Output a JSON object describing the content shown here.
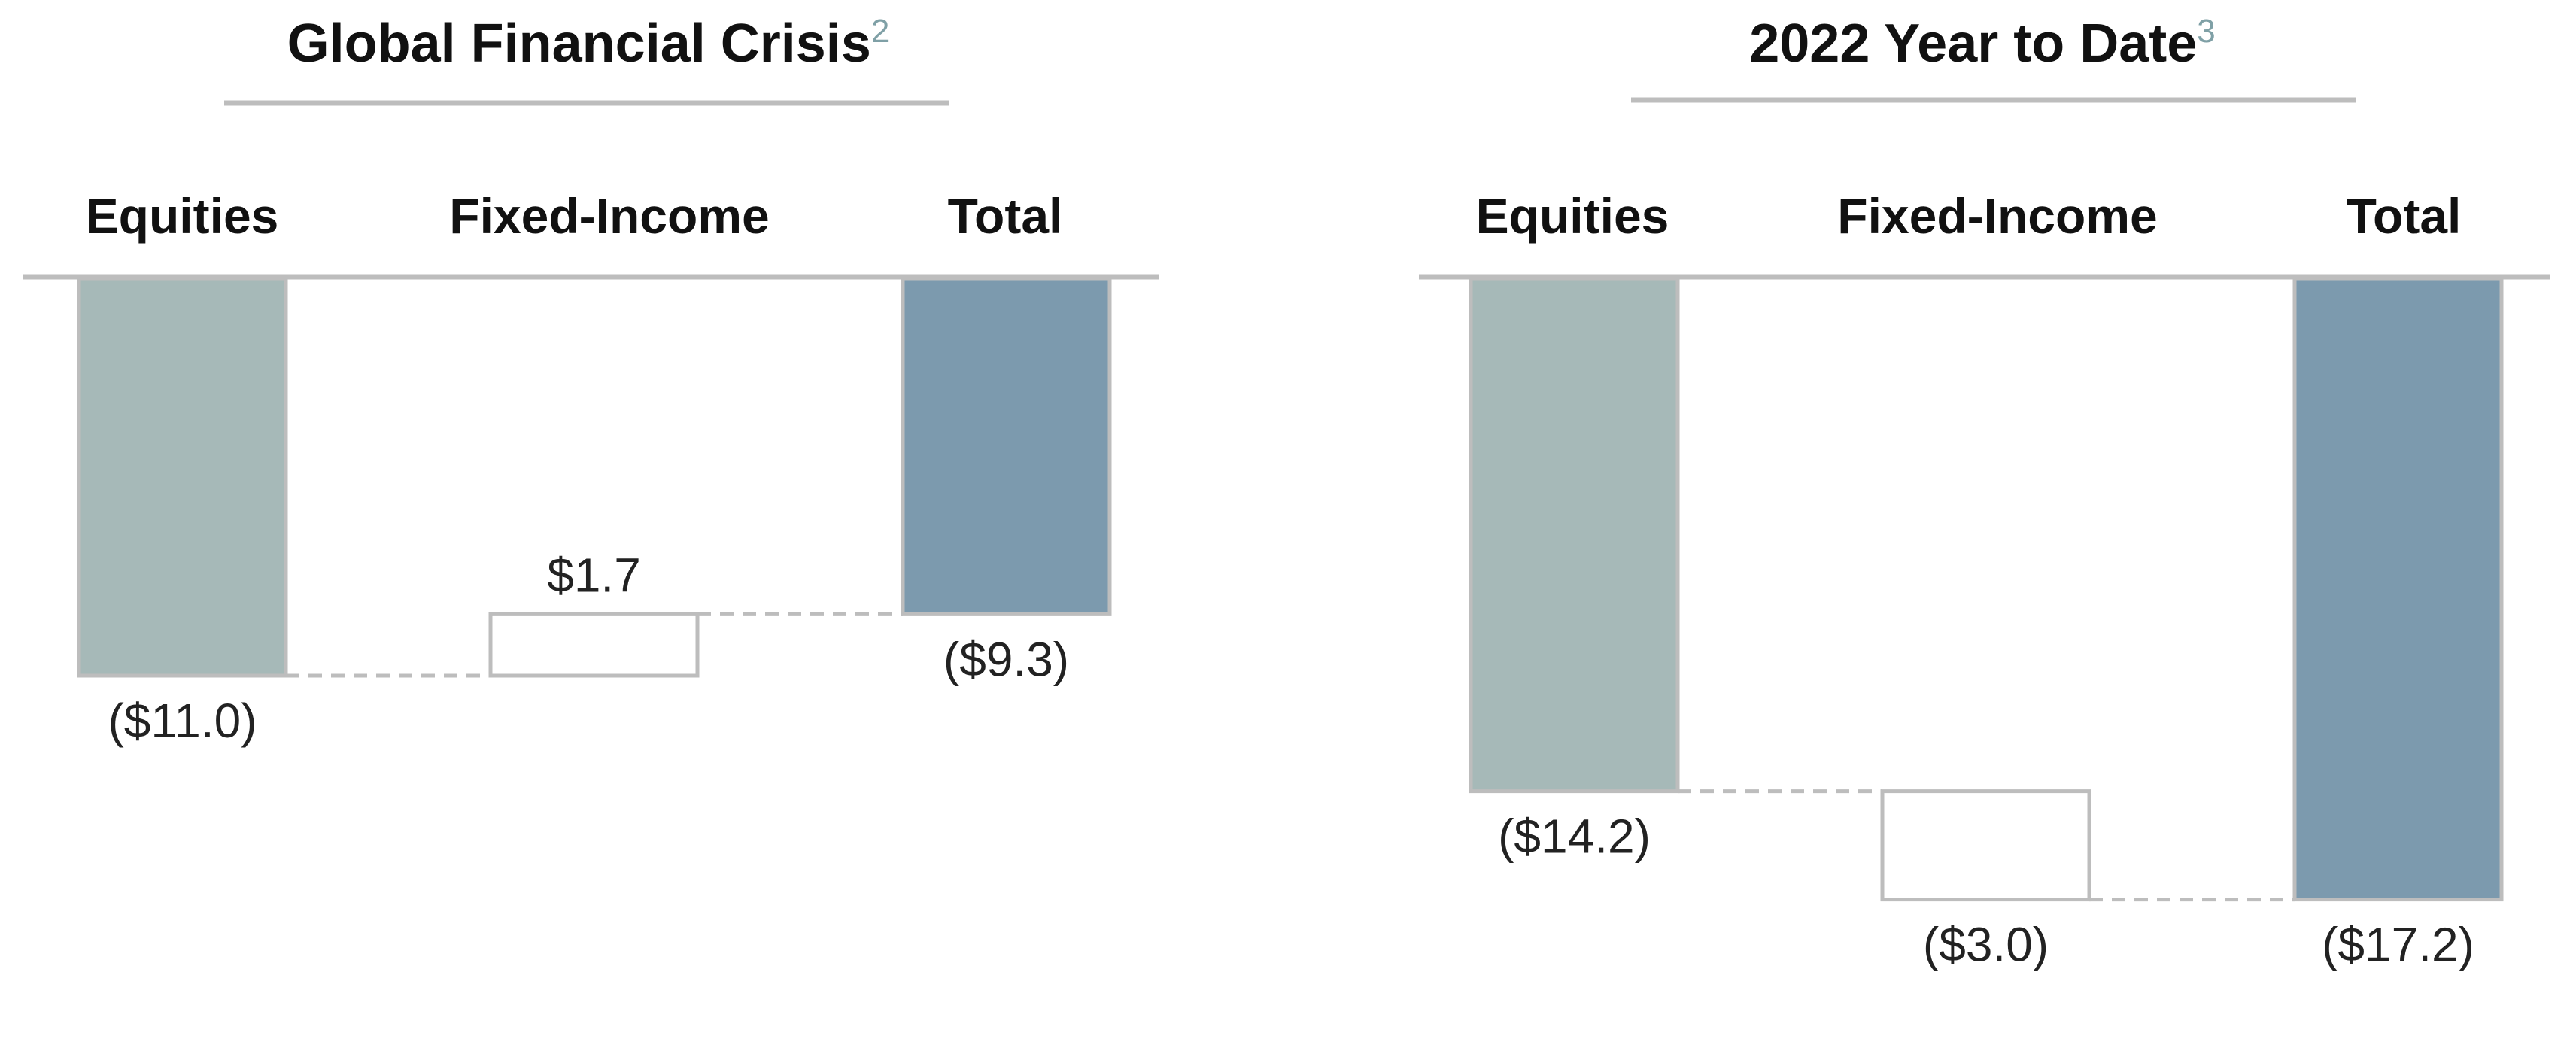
{
  "chart_data": [
    {
      "type": "waterfall",
      "title": "Global Financial Crisis",
      "title_superscript": "2",
      "categories": [
        "Equities",
        "Fixed-Income",
        "Total"
      ],
      "values": [
        -11.0,
        1.7,
        -9.3
      ],
      "value_labels": [
        "($11.0)",
        "$1.7",
        "($9.3)"
      ],
      "bar_roles": [
        "change",
        "change",
        "total"
      ]
    },
    {
      "type": "waterfall",
      "title": "2022 Year to Date",
      "title_superscript": "3",
      "categories": [
        "Equities",
        "Fixed-Income",
        "Total"
      ],
      "values": [
        -14.2,
        -3.0,
        -17.2
      ],
      "value_labels": [
        "($14.2)",
        "($3.0)",
        "($17.2)"
      ],
      "bar_roles": [
        "change",
        "change",
        "total"
      ]
    }
  ],
  "colors": {
    "equities_fill": "#a6b9b8",
    "fixed_income_fill": "#ffffff",
    "total_fill": "#7c9aae",
    "bar_stroke": "#bdbdbd",
    "rule": "#bdbdbd",
    "connector": "#bdbdbd",
    "superscript": "#7fa0a6"
  }
}
